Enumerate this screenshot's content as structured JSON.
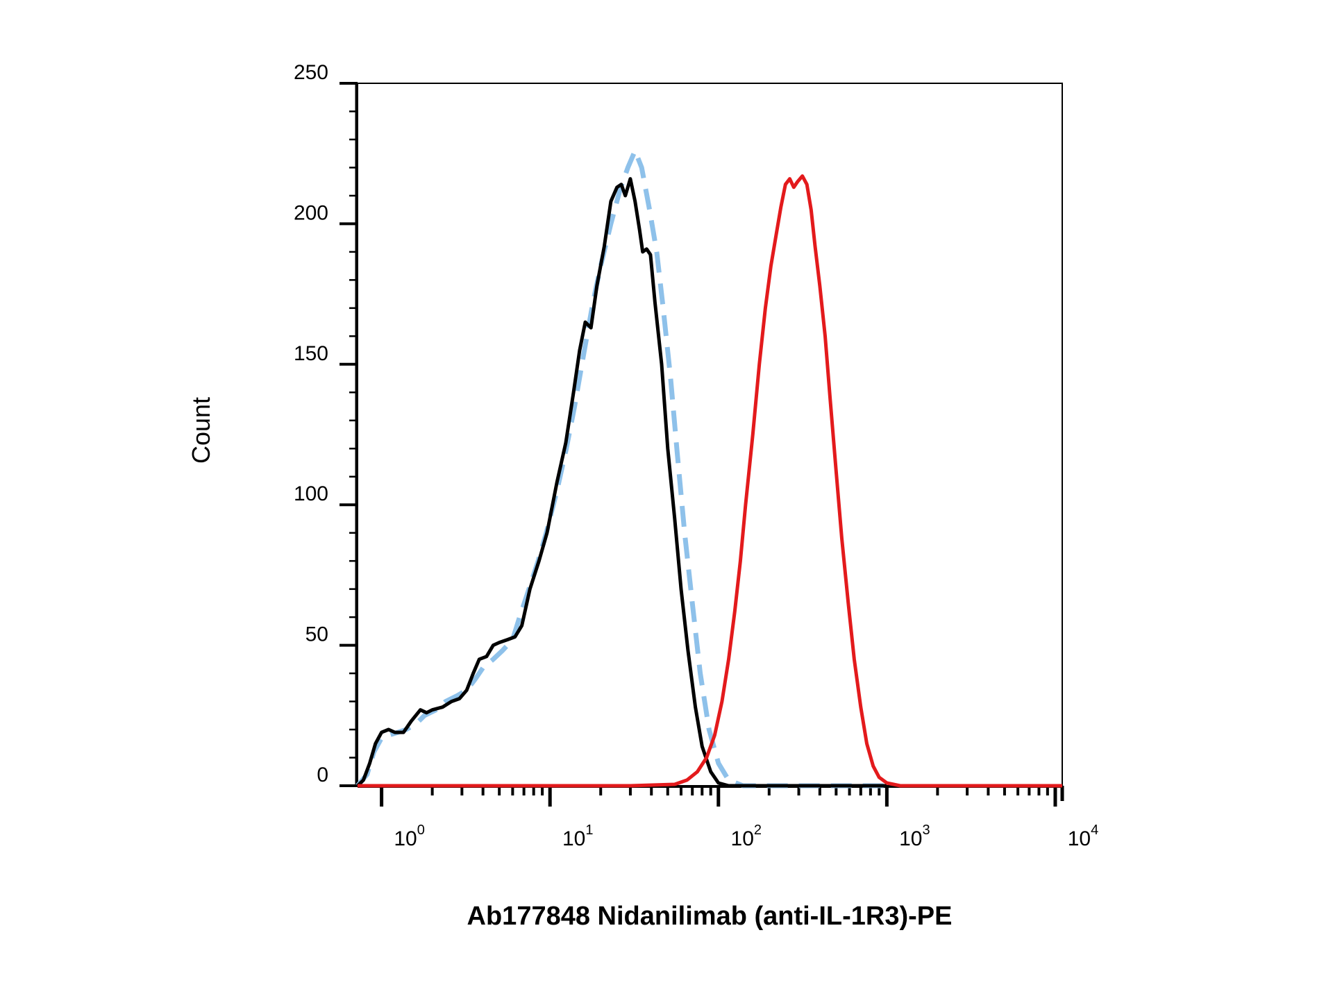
{
  "chart_data": {
    "type": "line",
    "title": "",
    "xlabel": "Ab177848 Nidanilimab (anti-IL-1R3)-PE",
    "ylabel": "Count",
    "xscale": "log",
    "xlim": [
      0.72,
      11000
    ],
    "ylim": [
      0,
      250
    ],
    "grid": false,
    "legend": "none",
    "y_ticks": [
      {
        "value": 0,
        "label": "0"
      },
      {
        "value": 50,
        "label": "50"
      },
      {
        "value": 100,
        "label": "100"
      },
      {
        "value": 150,
        "label": "150"
      },
      {
        "value": 200,
        "label": "200"
      },
      {
        "value": 250,
        "label": "250"
      }
    ],
    "x_ticks": [
      {
        "value": 1,
        "base": "10",
        "exponent": "0"
      },
      {
        "value": 10,
        "base": "10",
        "exponent": "1"
      },
      {
        "value": 100,
        "base": "10",
        "exponent": "2"
      },
      {
        "value": 1000,
        "base": "10",
        "exponent": "3"
      },
      {
        "value": 10000,
        "base": "10",
        "exponent": "4"
      }
    ],
    "series": [
      {
        "color": "#8ec1ea",
        "style": "dashed",
        "points": [
          [
            0.72,
            0
          ],
          [
            0.82,
            4
          ],
          [
            0.9,
            12
          ],
          [
            1.0,
            17
          ],
          [
            1.1,
            18
          ],
          [
            1.25,
            19
          ],
          [
            1.4,
            20
          ],
          [
            1.6,
            22
          ],
          [
            1.8,
            25
          ],
          [
            2.1,
            27
          ],
          [
            2.4,
            30
          ],
          [
            2.8,
            32
          ],
          [
            3.2,
            34
          ],
          [
            3.6,
            38
          ],
          [
            4.0,
            42
          ],
          [
            4.6,
            45
          ],
          [
            5.2,
            48
          ],
          [
            6.0,
            52
          ],
          [
            6.6,
            60
          ],
          [
            7.5,
            70
          ],
          [
            8.5,
            80
          ],
          [
            9.5,
            90
          ],
          [
            11,
            105
          ],
          [
            12.5,
            120
          ],
          [
            14,
            135
          ],
          [
            16,
            155
          ],
          [
            18,
            172
          ],
          [
            20,
            185
          ],
          [
            23,
            200
          ],
          [
            26,
            212
          ],
          [
            29,
            220
          ],
          [
            32,
            226
          ],
          [
            35,
            220
          ],
          [
            39,
            205
          ],
          [
            43,
            190
          ],
          [
            47,
            170
          ],
          [
            52,
            145
          ],
          [
            57,
            118
          ],
          [
            63,
            90
          ],
          [
            70,
            65
          ],
          [
            78,
            40
          ],
          [
            88,
            20
          ],
          [
            100,
            8
          ],
          [
            115,
            2
          ],
          [
            140,
            0
          ],
          [
            200,
            0
          ],
          [
            1000,
            0
          ]
        ]
      },
      {
        "color": "#000000",
        "style": "solid",
        "points": [
          [
            0.72,
            0
          ],
          [
            0.78,
            2
          ],
          [
            0.85,
            8
          ],
          [
            0.92,
            15
          ],
          [
            1.0,
            19
          ],
          [
            1.1,
            20
          ],
          [
            1.2,
            19
          ],
          [
            1.35,
            19
          ],
          [
            1.5,
            23
          ],
          [
            1.7,
            27
          ],
          [
            1.85,
            26
          ],
          [
            2.0,
            27
          ],
          [
            2.3,
            28
          ],
          [
            2.6,
            30
          ],
          [
            2.9,
            31
          ],
          [
            3.2,
            34
          ],
          [
            3.5,
            40
          ],
          [
            3.8,
            45
          ],
          [
            4.2,
            46
          ],
          [
            4.6,
            50
          ],
          [
            5.0,
            51
          ],
          [
            5.6,
            52
          ],
          [
            6.2,
            53
          ],
          [
            6.8,
            57
          ],
          [
            7.6,
            70
          ],
          [
            8.6,
            80
          ],
          [
            9.6,
            90
          ],
          [
            11,
            108
          ],
          [
            12.4,
            122
          ],
          [
            13.8,
            140
          ],
          [
            15,
            155
          ],
          [
            16.2,
            165
          ],
          [
            17.5,
            163
          ],
          [
            19,
            178
          ],
          [
            21,
            192
          ],
          [
            23,
            208
          ],
          [
            25,
            213
          ],
          [
            26.5,
            214
          ],
          [
            28,
            210
          ],
          [
            30,
            216
          ],
          [
            32,
            208
          ],
          [
            34,
            198
          ],
          [
            35.5,
            190
          ],
          [
            37.5,
            191
          ],
          [
            39.5,
            189
          ],
          [
            42,
            172
          ],
          [
            46,
            150
          ],
          [
            50,
            120
          ],
          [
            55,
            95
          ],
          [
            60,
            70
          ],
          [
            66,
            48
          ],
          [
            73,
            28
          ],
          [
            80,
            14
          ],
          [
            90,
            5
          ],
          [
            100,
            1
          ],
          [
            115,
            0
          ],
          [
            200,
            0
          ],
          [
            1000,
            0
          ]
        ]
      },
      {
        "color": "#e31a1c",
        "style": "solid",
        "points": [
          [
            0.72,
            0
          ],
          [
            30,
            0
          ],
          [
            55,
            0.5
          ],
          [
            65,
            2
          ],
          [
            75,
            5
          ],
          [
            85,
            10
          ],
          [
            95,
            18
          ],
          [
            105,
            30
          ],
          [
            115,
            45
          ],
          [
            125,
            62
          ],
          [
            135,
            80
          ],
          [
            145,
            100
          ],
          [
            160,
            125
          ],
          [
            175,
            150
          ],
          [
            190,
            170
          ],
          [
            205,
            185
          ],
          [
            220,
            196
          ],
          [
            235,
            206
          ],
          [
            250,
            214
          ],
          [
            265,
            216
          ],
          [
            280,
            213
          ],
          [
            295,
            215
          ],
          [
            315,
            217
          ],
          [
            335,
            214
          ],
          [
            355,
            205
          ],
          [
            375,
            192
          ],
          [
            400,
            178
          ],
          [
            430,
            160
          ],
          [
            460,
            138
          ],
          [
            500,
            112
          ],
          [
            540,
            88
          ],
          [
            590,
            65
          ],
          [
            640,
            45
          ],
          [
            700,
            28
          ],
          [
            760,
            15
          ],
          [
            830,
            7
          ],
          [
            900,
            3
          ],
          [
            1000,
            1
          ],
          [
            1200,
            0
          ],
          [
            11000,
            0
          ]
        ]
      }
    ]
  }
}
